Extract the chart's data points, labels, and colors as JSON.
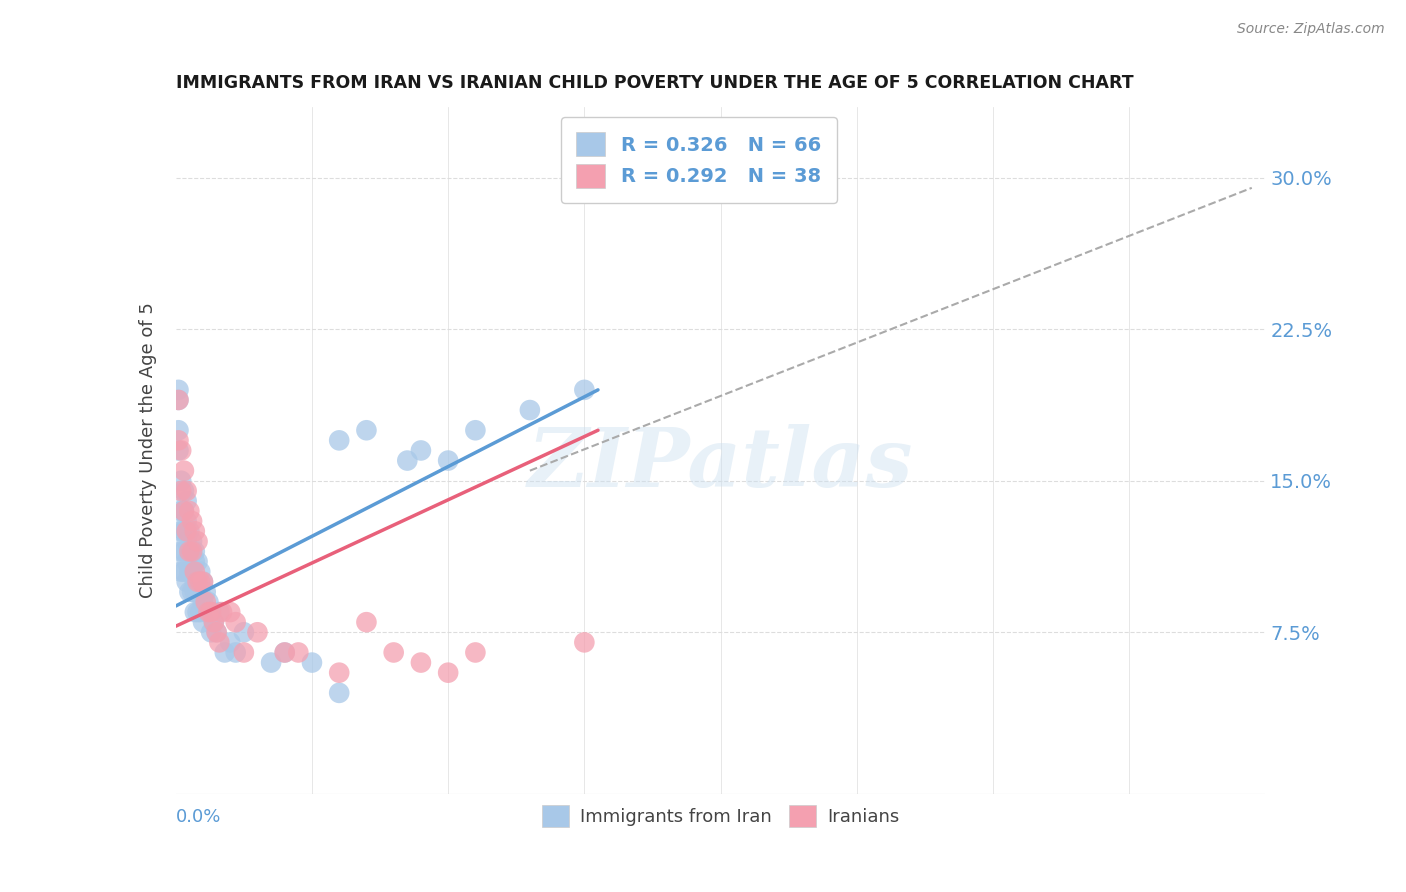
{
  "title": "IMMIGRANTS FROM IRAN VS IRANIAN CHILD POVERTY UNDER THE AGE OF 5 CORRELATION CHART",
  "source": "Source: ZipAtlas.com",
  "ylabel": "Child Poverty Under the Age of 5",
  "y_ticks_labels": [
    "7.5%",
    "15.0%",
    "22.5%",
    "30.0%"
  ],
  "y_ticks_vals": [
    0.075,
    0.15,
    0.225,
    0.3
  ],
  "x_range": [
    0,
    0.4
  ],
  "y_range": [
    -0.005,
    0.335
  ],
  "watermark": "ZIPatlas",
  "blue_color": "#a8c8e8",
  "pink_color": "#f4a0b0",
  "legend_blue_r": "0.326",
  "legend_blue_n": "66",
  "legend_pink_r": "0.292",
  "legend_pink_n": "38",
  "blue_line_x": [
    0.0,
    0.155
  ],
  "blue_line_y": [
    0.088,
    0.195
  ],
  "pink_line_x": [
    0.0,
    0.155
  ],
  "pink_line_y": [
    0.078,
    0.175
  ],
  "dash_line_x": [
    0.13,
    0.395
  ],
  "dash_line_y": [
    0.155,
    0.295
  ],
  "blue_points_x": [
    0.001,
    0.001,
    0.001,
    0.001,
    0.002,
    0.002,
    0.002,
    0.002,
    0.002,
    0.003,
    0.003,
    0.003,
    0.003,
    0.003,
    0.004,
    0.004,
    0.004,
    0.004,
    0.004,
    0.005,
    0.005,
    0.005,
    0.005,
    0.006,
    0.006,
    0.006,
    0.006,
    0.007,
    0.007,
    0.007,
    0.007,
    0.007,
    0.008,
    0.008,
    0.008,
    0.008,
    0.009,
    0.009,
    0.009,
    0.01,
    0.01,
    0.01,
    0.011,
    0.011,
    0.012,
    0.013,
    0.013,
    0.014,
    0.015,
    0.016,
    0.018,
    0.02,
    0.022,
    0.025,
    0.035,
    0.04,
    0.05,
    0.06,
    0.06,
    0.07,
    0.085,
    0.09,
    0.1,
    0.11,
    0.13,
    0.15
  ],
  "blue_points_y": [
    0.19,
    0.195,
    0.175,
    0.165,
    0.15,
    0.135,
    0.125,
    0.115,
    0.105,
    0.145,
    0.135,
    0.125,
    0.115,
    0.105,
    0.14,
    0.13,
    0.12,
    0.11,
    0.1,
    0.125,
    0.115,
    0.105,
    0.095,
    0.12,
    0.115,
    0.105,
    0.095,
    0.115,
    0.11,
    0.1,
    0.095,
    0.085,
    0.11,
    0.1,
    0.095,
    0.085,
    0.105,
    0.095,
    0.085,
    0.1,
    0.09,
    0.08,
    0.095,
    0.085,
    0.09,
    0.085,
    0.075,
    0.08,
    0.075,
    0.085,
    0.065,
    0.07,
    0.065,
    0.075,
    0.06,
    0.065,
    0.06,
    0.045,
    0.17,
    0.175,
    0.16,
    0.165,
    0.16,
    0.175,
    0.185,
    0.195
  ],
  "pink_points_x": [
    0.001,
    0.001,
    0.002,
    0.002,
    0.003,
    0.003,
    0.004,
    0.004,
    0.005,
    0.005,
    0.006,
    0.006,
    0.007,
    0.007,
    0.008,
    0.008,
    0.009,
    0.01,
    0.011,
    0.012,
    0.013,
    0.014,
    0.015,
    0.016,
    0.017,
    0.02,
    0.022,
    0.025,
    0.03,
    0.04,
    0.045,
    0.06,
    0.07,
    0.08,
    0.09,
    0.1,
    0.11,
    0.15
  ],
  "pink_points_y": [
    0.19,
    0.17,
    0.165,
    0.145,
    0.155,
    0.135,
    0.145,
    0.125,
    0.135,
    0.115,
    0.13,
    0.115,
    0.125,
    0.105,
    0.12,
    0.1,
    0.1,
    0.1,
    0.09,
    0.085,
    0.085,
    0.08,
    0.075,
    0.07,
    0.085,
    0.085,
    0.08,
    0.065,
    0.075,
    0.065,
    0.065,
    0.055,
    0.08,
    0.065,
    0.06,
    0.055,
    0.065,
    0.07
  ]
}
